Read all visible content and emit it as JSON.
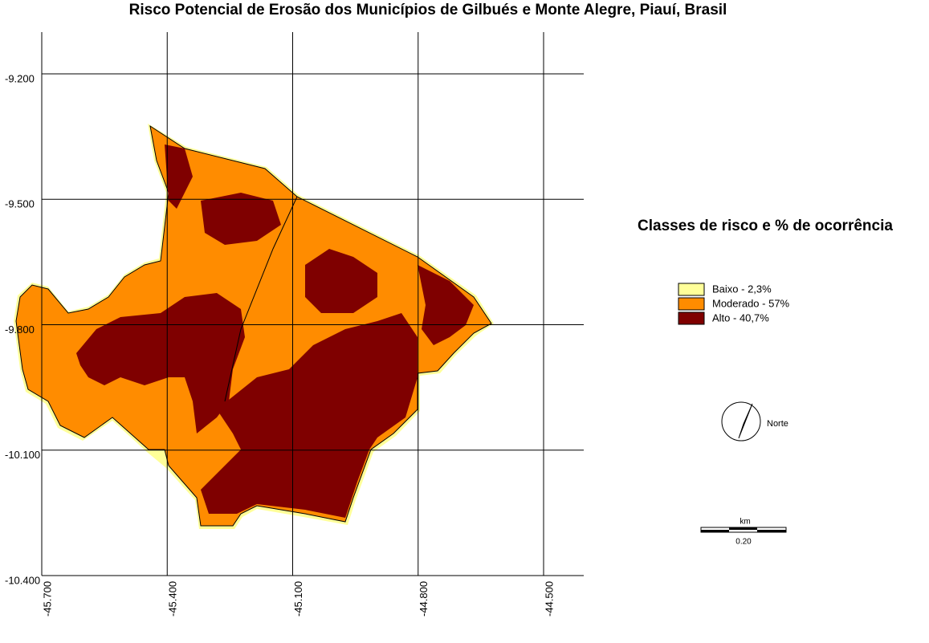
{
  "header": {
    "title": "Risco Potencial de Erosão dos Municípios de Gilbués e Monte Alegre, Piauí, Brasil"
  },
  "map": {
    "lat_ticks": [
      {
        "value": -9.2,
        "label": "-9.200"
      },
      {
        "value": -9.5,
        "label": "-9.500"
      },
      {
        "value": -9.8,
        "label": "-9.800"
      },
      {
        "value": -10.1,
        "label": "-10.100"
      },
      {
        "value": -10.4,
        "label": "-10.400"
      }
    ],
    "lon_ticks": [
      {
        "value": -45.7,
        "label": "-45.700"
      },
      {
        "value": -45.4,
        "label": "-45.400"
      },
      {
        "value": -45.1,
        "label": "-45.100"
      },
      {
        "value": -44.8,
        "label": "-44.800"
      },
      {
        "value": -44.5,
        "label": "-44.500"
      }
    ]
  },
  "legend": {
    "title": "Classes de risco e %  de ocorrência",
    "items": [
      {
        "label": "Baixo - 2,3%",
        "color": "#ffff99"
      },
      {
        "label": "Moderado - 57%",
        "color": "#ff8c00"
      },
      {
        "label": "Alto - 40,7%",
        "color": "#7f0000"
      }
    ]
  },
  "north": {
    "label": "Norte"
  },
  "scale_bar": {
    "unit": "km",
    "label": "0.20"
  }
}
